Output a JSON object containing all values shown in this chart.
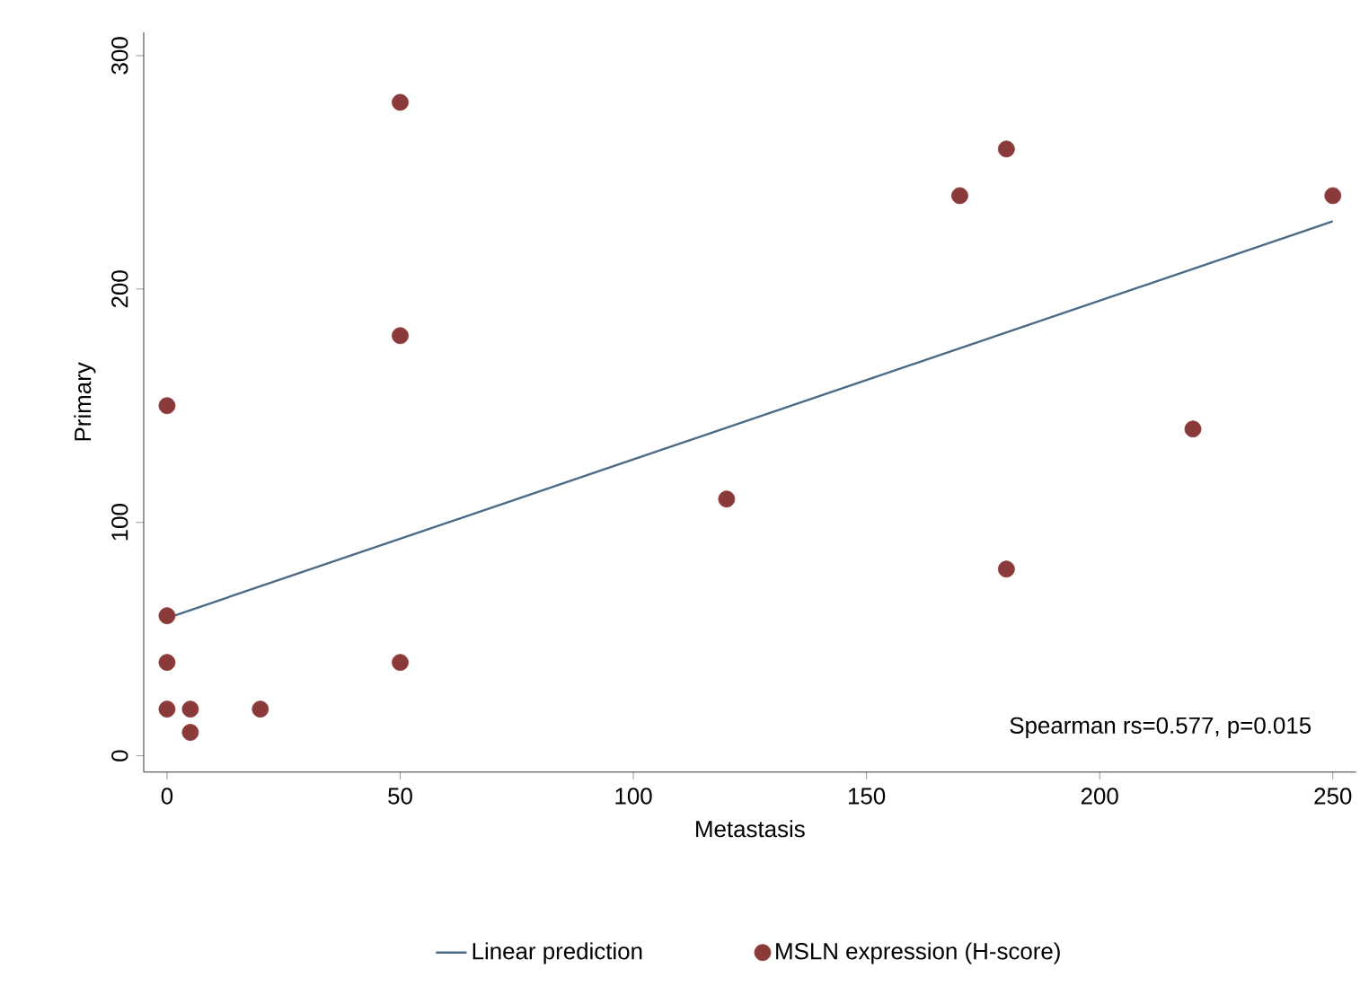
{
  "chart_data": {
    "type": "scatter",
    "xlabel": "Metastasis",
    "ylabel": "Primary",
    "xlim": [
      -5,
      255
    ],
    "ylim": [
      -7,
      310
    ],
    "xticks": [
      0,
      50,
      100,
      150,
      200,
      250
    ],
    "yticks": [
      0,
      100,
      200,
      300
    ],
    "legend": "bottom",
    "grid": false,
    "annotations": [
      "Spearman rs=0.577, p=0.015"
    ],
    "series": [
      {
        "name": "Linear prediction",
        "type": "line",
        "line_style": "solid",
        "marker": "none",
        "color": "#4a6a85",
        "x": [
          0,
          250
        ],
        "values": [
          59,
          229
        ]
      },
      {
        "name": "MSLN expression (H-score)",
        "marker": "circle",
        "color": "#8b3a3a",
        "x": [
          0,
          0,
          0,
          0,
          5,
          5,
          20,
          50,
          50,
          50,
          120,
          170,
          180,
          180,
          220,
          250
        ],
        "values": [
          150,
          60,
          40,
          20,
          20,
          10,
          20,
          280,
          180,
          40,
          110,
          240,
          260,
          80,
          140,
          240
        ]
      }
    ]
  }
}
